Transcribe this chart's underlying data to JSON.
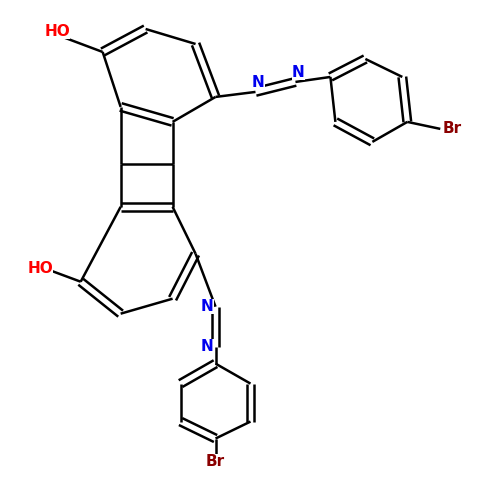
{
  "background_color": "#ffffff",
  "bond_color": "#000000",
  "bond_width": 1.8,
  "atom_colors": {
    "N": "#0000ee",
    "O": "#ff0000",
    "Br": "#8b0000"
  },
  "font_size": 11
}
